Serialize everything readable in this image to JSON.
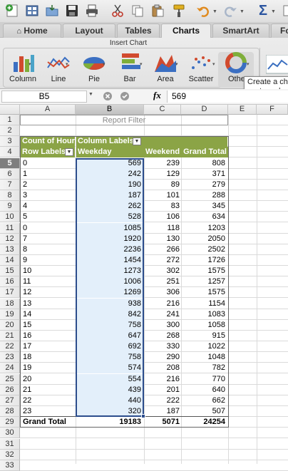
{
  "toolbar": {
    "icons": [
      "new-workbook-icon",
      "templates-icon",
      "open-icon",
      "save-icon",
      "print-icon",
      "cut-icon",
      "copy-icon",
      "paste-icon",
      "format-painter-icon",
      "undo-icon",
      "redo-icon",
      "autosum-icon"
    ]
  },
  "tabs": [
    {
      "label": "Home",
      "active": false
    },
    {
      "label": "Layout",
      "active": false
    },
    {
      "label": "Tables",
      "active": false
    },
    {
      "label": "Charts",
      "active": true
    },
    {
      "label": "SmartArt",
      "active": false
    },
    {
      "label": "Fo",
      "active": false
    }
  ],
  "ribbon": {
    "group_label": "Insert Chart",
    "buttons": [
      {
        "label": "Column",
        "icon": "column-chart-icon"
      },
      {
        "label": "Line",
        "icon": "line-chart-icon"
      },
      {
        "label": "Pie",
        "icon": "pie-chart-icon"
      },
      {
        "label": "Bar",
        "icon": "bar-chart-icon"
      },
      {
        "label": "Area",
        "icon": "area-chart-icon"
      },
      {
        "label": "Scatter",
        "icon": "scatter-chart-icon"
      },
      {
        "label": "Othe",
        "icon": "other-chart-icon"
      }
    ],
    "tooltip_line1": "Create a ch",
    "tooltip_line2": "custom cha"
  },
  "formula_bar": {
    "name_box": "B5",
    "fx": "fx",
    "value": "569"
  },
  "grid": {
    "columns": [
      "A",
      "B",
      "C",
      "D",
      "E",
      "F"
    ],
    "selected_column": "B",
    "selected_row": 5,
    "row_numbers": [
      1,
      2,
      3,
      4,
      5,
      6,
      7,
      8,
      9,
      10,
      11,
      12,
      13,
      14,
      15,
      16,
      17,
      18,
      19,
      20,
      21,
      22,
      23,
      24,
      25,
      26,
      27,
      28,
      29,
      30,
      31,
      32,
      33
    ]
  },
  "pivot": {
    "report_filter": "Report Filter",
    "count_label": "Count of Hour",
    "column_labels": "Column Labels",
    "row_labels": "Row Labels",
    "col_weekday": "Weekday",
    "col_weekend": "Weekend",
    "col_total": "Grand Total",
    "rows": [
      {
        "hour": "0",
        "weekday": "569",
        "weekend": "239",
        "total": "808"
      },
      {
        "hour": "1",
        "weekday": "242",
        "weekend": "129",
        "total": "371"
      },
      {
        "hour": "2",
        "weekday": "190",
        "weekend": "89",
        "total": "279"
      },
      {
        "hour": "3",
        "weekday": "187",
        "weekend": "101",
        "total": "288"
      },
      {
        "hour": "4",
        "weekday": "262",
        "weekend": "83",
        "total": "345"
      },
      {
        "hour": "5",
        "weekday": "528",
        "weekend": "106",
        "total": "634"
      },
      {
        "hour": "0",
        "weekday": "1085",
        "weekend": "118",
        "total": "1203"
      },
      {
        "hour": "7",
        "weekday": "1920",
        "weekend": "130",
        "total": "2050"
      },
      {
        "hour": "8",
        "weekday": "2236",
        "weekend": "266",
        "total": "2502"
      },
      {
        "hour": "9",
        "weekday": "1454",
        "weekend": "272",
        "total": "1726"
      },
      {
        "hour": "10",
        "weekday": "1273",
        "weekend": "302",
        "total": "1575"
      },
      {
        "hour": "11",
        "weekday": "1006",
        "weekend": "251",
        "total": "1257"
      },
      {
        "hour": "12",
        "weekday": "1269",
        "weekend": "306",
        "total": "1575"
      },
      {
        "hour": "13",
        "weekday": "938",
        "weekend": "216",
        "total": "1154"
      },
      {
        "hour": "14",
        "weekday": "842",
        "weekend": "241",
        "total": "1083"
      },
      {
        "hour": "15",
        "weekday": "758",
        "weekend": "300",
        "total": "1058"
      },
      {
        "hour": "16",
        "weekday": "647",
        "weekend": "268",
        "total": "915"
      },
      {
        "hour": "17",
        "weekday": "692",
        "weekend": "330",
        "total": "1022"
      },
      {
        "hour": "18",
        "weekday": "758",
        "weekend": "290",
        "total": "1048"
      },
      {
        "hour": "19",
        "weekday": "574",
        "weekend": "208",
        "total": "782"
      },
      {
        "hour": "20",
        "weekday": "554",
        "weekend": "216",
        "total": "770"
      },
      {
        "hour": "21",
        "weekday": "439",
        "weekend": "201",
        "total": "640"
      },
      {
        "hour": "22",
        "weekday": "440",
        "weekend": "222",
        "total": "662"
      },
      {
        "hour": "23",
        "weekday": "320",
        "weekend": "187",
        "total": "507"
      }
    ],
    "grand_total_label": "Grand Total",
    "grand_weekday": "19183",
    "grand_weekend": "5071",
    "grand_total": "24254"
  },
  "colors": {
    "pivot_header": "#8ba446",
    "selection": "#2c4d8c",
    "selection_fill": "#e3effa"
  }
}
